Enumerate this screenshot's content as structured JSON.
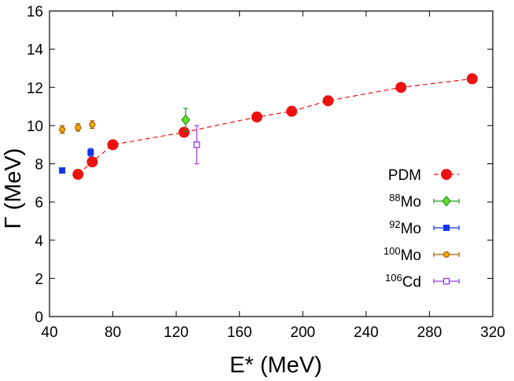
{
  "chart_data": {
    "type": "scatter",
    "title": "",
    "xlabel": "E*  (MeV)",
    "ylabel": "Γ  (MeV)",
    "xlim": [
      40,
      320
    ],
    "ylim": [
      0,
      16
    ],
    "xticks": [
      40,
      80,
      120,
      160,
      200,
      240,
      280,
      320
    ],
    "yticks": [
      0,
      2,
      4,
      6,
      8,
      10,
      12,
      14,
      16
    ],
    "legend_position": "right",
    "series": [
      {
        "name": "PDM",
        "sup": "",
        "base": "PDM",
        "color": "#ee1111",
        "marker": "circle",
        "line": true,
        "points": [
          {
            "x": 58,
            "y": 7.45
          },
          {
            "x": 67,
            "y": 8.1
          },
          {
            "x": 80,
            "y": 9.0
          },
          {
            "x": 125,
            "y": 9.65
          },
          {
            "x": 171,
            "y": 10.45
          },
          {
            "x": 193,
            "y": 10.75
          },
          {
            "x": 216,
            "y": 11.3
          },
          {
            "x": 262,
            "y": 12.0
          },
          {
            "x": 307,
            "y": 12.45
          }
        ]
      },
      {
        "name": "88Mo",
        "sup": "88",
        "base": "Mo",
        "color": "#1a9a1a",
        "fill": "#66dd22",
        "marker": "diamond",
        "line": false,
        "points": [
          {
            "x": 126,
            "y": 10.3,
            "err": 0.6
          }
        ]
      },
      {
        "name": "92Mo",
        "sup": "92",
        "base": "Mo",
        "color": "#1133ee",
        "fill": "#1133ee",
        "marker": "square",
        "line": false,
        "points": [
          {
            "x": 48,
            "y": 7.65,
            "err": 0.0
          },
          {
            "x": 66,
            "y": 8.6,
            "err": 0.2
          }
        ]
      },
      {
        "name": "100Mo",
        "sup": "100",
        "base": "Mo",
        "color": "#a06000",
        "fill": "#ffaa00",
        "marker": "smallcircle",
        "line": false,
        "points": [
          {
            "x": 48,
            "y": 9.8,
            "err": 0.2
          },
          {
            "x": 58,
            "y": 9.9,
            "err": 0.2
          },
          {
            "x": 67,
            "y": 10.05,
            "err": 0.2
          }
        ]
      },
      {
        "name": "106Cd",
        "sup": "106",
        "base": "Cd",
        "color": "#9933ff",
        "fill": "#ffffff",
        "marker": "opensquare",
        "line": false,
        "points": [
          {
            "x": 133,
            "y": 9.0,
            "err": 1.0
          }
        ]
      }
    ]
  }
}
